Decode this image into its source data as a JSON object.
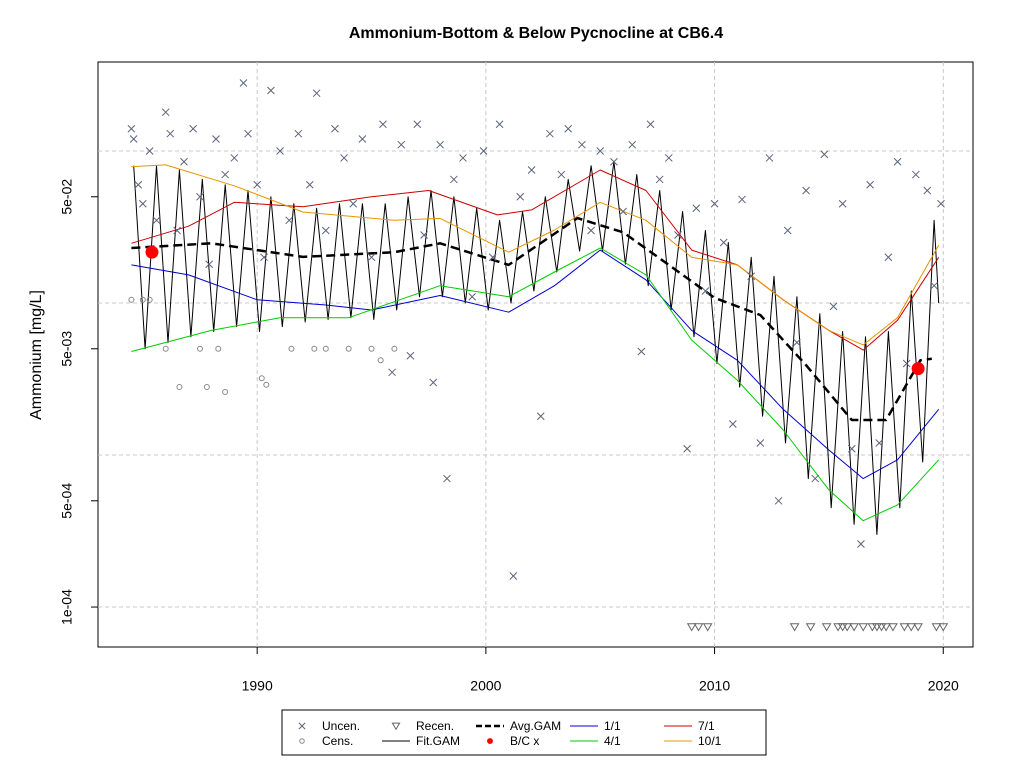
{
  "chart_data": {
    "type": "scatter",
    "title": "Ammonium-Bottom & Below Pycnocline at CB6.4",
    "y_label": "Ammonium [mg/L]",
    "xlim": [
      1983.04,
      2021.3
    ],
    "xticks": [
      1990,
      2000,
      2010,
      2020
    ],
    "ylim": [
      5.46e-05,
      0.385
    ],
    "log_y": true,
    "yticks": [
      {
        "value": 0.0001,
        "label": "1e-04"
      },
      {
        "value": 0.0005,
        "label": "5e-04"
      },
      {
        "value": 0.005,
        "label": "5e-03"
      },
      {
        "value": 0.05,
        "label": "5e-02"
      }
    ],
    "ygrid": [
      0.0001,
      0.001,
      0.01,
      0.1
    ],
    "grid": true,
    "legend": "bottom",
    "series": [
      {
        "name": "Uncen.",
        "color": "#5a6478",
        "marker": "x",
        "x": [
          1984.5,
          1984.6,
          1984.8,
          1985.0,
          1985.3,
          1985.6,
          1986.0,
          1986.2,
          1986.5,
          1986.8,
          1987.2,
          1987.5,
          1987.9,
          1988.2,
          1988.6,
          1989.0,
          1989.4,
          1989.6,
          1990.0,
          1990.3,
          1990.6,
          1991.0,
          1991.4,
          1991.8,
          1992.3,
          1992.6,
          1993.0,
          1993.4,
          1993.8,
          1994.2,
          1994.6,
          1995.0,
          1995.5,
          1995.9,
          1996.3,
          1996.7,
          1997.0,
          1997.3,
          1997.7,
          1998.0,
          1998.3,
          1998.6,
          1999.0,
          1999.4,
          1999.9,
          2000.3,
          2000.6,
          2001.2,
          2001.5,
          2002.0,
          2002.4,
          2002.8,
          2003.3,
          2003.6,
          2004.2,
          2004.6,
          2005.0,
          2005.6,
          2006.0,
          2006.4,
          2006.8,
          2007.2,
          2007.6,
          2008.0,
          2008.4,
          2008.8,
          2009.2,
          2009.6,
          2010.0,
          2010.4,
          2010.8,
          2011.2,
          2011.6,
          2012.0,
          2012.4,
          2012.8,
          2013.2,
          2013.6,
          2014.0,
          2014.4,
          2014.8,
          2015.2,
          2015.6,
          2016.0,
          2016.4,
          2016.8,
          2017.2,
          2017.6,
          2018.0,
          2018.4,
          2018.8,
          2019.3,
          2019.6,
          2019.9
        ],
        "values": [
          0.14,
          0.12,
          0.06,
          0.045,
          0.1,
          0.035,
          0.18,
          0.13,
          0.03,
          0.085,
          0.14,
          0.05,
          0.018,
          0.12,
          0.07,
          0.09,
          0.28,
          0.13,
          0.06,
          0.02,
          0.25,
          0.1,
          0.035,
          0.13,
          0.06,
          0.24,
          0.03,
          0.14,
          0.09,
          0.045,
          0.12,
          0.02,
          0.15,
          0.0035,
          0.11,
          0.0045,
          0.15,
          0.028,
          0.003,
          0.11,
          0.0007,
          0.065,
          0.09,
          0.011,
          0.1,
          0.02,
          0.15,
          0.00016,
          0.05,
          0.075,
          0.0018,
          0.13,
          0.07,
          0.14,
          0.11,
          0.03,
          0.1,
          0.085,
          0.04,
          0.11,
          0.0048,
          0.15,
          0.065,
          0.09,
          0.028,
          0.0011,
          0.042,
          0.012,
          0.045,
          0.025,
          0.0016,
          0.048,
          0.015,
          0.0012,
          0.09,
          0.0005,
          0.03,
          0.0055,
          0.055,
          0.0007,
          0.095,
          0.0095,
          0.045,
          0.0011,
          0.00026,
          0.06,
          0.0012,
          0.02,
          0.085,
          0.004,
          0.07,
          0.055,
          0.013,
          0.045
        ]
      },
      {
        "name": "Cens.",
        "color": "#888888",
        "marker": "circle",
        "x": [
          1984.5,
          1985.0,
          1985.3,
          1986.0,
          1986.6,
          1987.5,
          1987.8,
          1988.3,
          1988.6,
          1990.2,
          1990.4,
          1991.5,
          1992.5,
          1993.0,
          1994.0,
          1995.0,
          1995.4,
          1996.0
        ],
        "values": [
          0.0105,
          0.0105,
          0.0105,
          0.005,
          0.0028,
          0.005,
          0.0028,
          0.005,
          0.0026,
          0.0032,
          0.0029,
          0.005,
          0.005,
          0.005,
          0.005,
          0.005,
          0.0042,
          0.005
        ]
      },
      {
        "name": "Recen.",
        "color": "#666666",
        "marker": "triangle",
        "x": [
          2009.0,
          2009.3,
          2009.7,
          2013.5,
          2014.2,
          2014.9,
          2015.4,
          2015.6,
          2015.8,
          2016.1,
          2016.5,
          2016.9,
          2017.1,
          2017.3,
          2017.5,
          2017.8,
          2018.3,
          2018.6,
          2018.9,
          2019.7,
          2020.0
        ],
        "values": [
          7.4e-05,
          7.4e-05,
          7.4e-05,
          7.4e-05,
          7.4e-05,
          7.4e-05,
          7.4e-05,
          7.4e-05,
          7.4e-05,
          7.4e-05,
          7.4e-05,
          7.4e-05,
          7.4e-05,
          7.4e-05,
          7.4e-05,
          7.4e-05,
          7.4e-05,
          7.4e-05,
          7.4e-05,
          7.4e-05,
          7.4e-05
        ]
      },
      {
        "name": "Fit.GAM",
        "color": "#000000",
        "line": "solid",
        "width": 1,
        "x": [
          1984.6,
          1985.1,
          1985.6,
          1986.1,
          1986.6,
          1987.1,
          1987.6,
          1988.1,
          1988.6,
          1989.1,
          1989.6,
          1990.1,
          1990.6,
          1991.1,
          1991.6,
          1992.1,
          1992.6,
          1993.1,
          1993.6,
          1994.1,
          1994.6,
          1995.1,
          1995.6,
          1996.1,
          1996.6,
          1997.1,
          1997.6,
          1998.1,
          1998.6,
          1999.1,
          1999.6,
          2000.1,
          2000.6,
          2001.1,
          2001.6,
          2002.1,
          2002.6,
          2003.1,
          2003.6,
          2004.1,
          2004.6,
          2005.1,
          2005.6,
          2006.1,
          2006.6,
          2007.1,
          2007.6,
          2008.1,
          2008.6,
          2009.1,
          2009.6,
          2010.1,
          2010.6,
          2011.1,
          2011.6,
          2012.1,
          2012.6,
          2013.1,
          2013.6,
          2014.1,
          2014.6,
          2015.1,
          2015.6,
          2016.1,
          2016.6,
          2017.1,
          2017.6,
          2018.1,
          2018.6,
          2019.1,
          2019.6,
          2019.8
        ],
        "values": [
          0.08,
          0.005,
          0.08,
          0.0055,
          0.075,
          0.006,
          0.065,
          0.0065,
          0.06,
          0.007,
          0.055,
          0.0065,
          0.05,
          0.007,
          0.045,
          0.0075,
          0.042,
          0.0078,
          0.045,
          0.008,
          0.045,
          0.0078,
          0.045,
          0.009,
          0.05,
          0.011,
          0.055,
          0.011,
          0.05,
          0.01,
          0.042,
          0.009,
          0.035,
          0.01,
          0.04,
          0.012,
          0.05,
          0.016,
          0.065,
          0.022,
          0.08,
          0.022,
          0.085,
          0.018,
          0.07,
          0.013,
          0.055,
          0.009,
          0.04,
          0.006,
          0.03,
          0.004,
          0.025,
          0.0028,
          0.02,
          0.0018,
          0.015,
          0.0012,
          0.011,
          0.0007,
          0.0085,
          0.00045,
          0.0065,
          0.00035,
          0.006,
          0.0003,
          0.0065,
          0.00045,
          0.012,
          0.0009,
          0.035,
          0.01
        ]
      },
      {
        "name": "Avg.GAM",
        "color": "#000000",
        "line": "dashed",
        "width": 2.5,
        "x": [
          1984.5,
          1988,
          1992,
          1996,
          1998,
          2001,
          2004,
          2006,
          2008,
          2010,
          2012,
          2014,
          2016,
          2017.5,
          2019,
          2019.5
        ],
        "values": [
          0.023,
          0.0247,
          0.0201,
          0.0216,
          0.0247,
          0.0178,
          0.0362,
          0.0292,
          0.0178,
          0.0108,
          0.00834,
          0.0039,
          0.0017,
          0.0017,
          0.0042,
          0.0043
        ]
      },
      {
        "name": "B/C x",
        "color": "#ff0000",
        "marker": "dot",
        "x": [
          1985.4,
          2018.9
        ],
        "values": [
          0.0216,
          0.0037
        ]
      },
      {
        "name": "1/1",
        "color": "#0000cc",
        "line": "solid",
        "width": 1,
        "x": [
          1984.5,
          1987,
          1990,
          1993,
          1995,
          1998,
          2001,
          2003,
          2005,
          2007,
          2009,
          2011,
          2013,
          2015,
          2016.5,
          2018,
          2019.8
        ],
        "values": [
          0.0178,
          0.0153,
          0.0105,
          0.0097,
          0.009,
          0.0112,
          0.0087,
          0.013,
          0.0223,
          0.0142,
          0.0066,
          0.0042,
          0.002,
          0.00108,
          0.0007,
          0.00093,
          0.002
        ]
      },
      {
        "name": "4/1",
        "color": "#00cc00",
        "line": "solid",
        "width": 1,
        "x": [
          1984.5,
          1988,
          1991,
          1994,
          1998,
          2001,
          2003,
          2005,
          2007,
          2009,
          2011,
          2013,
          2015,
          2016.5,
          2018,
          2019.8
        ],
        "values": [
          0.0048,
          0.0066,
          0.008,
          0.008,
          0.013,
          0.011,
          0.016,
          0.023,
          0.0153,
          0.0057,
          0.0031,
          0.00146,
          0.00059,
          0.00037,
          0.00047,
          0.00093
        ]
      },
      {
        "name": "7/1",
        "color": "#cc0000",
        "line": "solid",
        "width": 1,
        "x": [
          1984.5,
          1987,
          1989,
          1992,
          1995,
          1997.5,
          2000.5,
          2002,
          2005,
          2007,
          2009,
          2011,
          2013,
          2015,
          2016.5,
          2018,
          2019.8
        ],
        "values": [
          0.0247,
          0.032,
          0.046,
          0.043,
          0.05,
          0.055,
          0.038,
          0.041,
          0.075,
          0.055,
          0.0223,
          0.0178,
          0.0105,
          0.0066,
          0.0049,
          0.0077,
          0.02
        ]
      },
      {
        "name": "10/1",
        "color": "#e69500",
        "line": "solid",
        "width": 1,
        "x": [
          1984.5,
          1986,
          1989,
          1992,
          1996,
          1998,
          2001,
          2003,
          2005,
          2007,
          2009,
          2011,
          2013,
          2015,
          2016.5,
          2018,
          2019.8
        ],
        "values": [
          0.079,
          0.081,
          0.059,
          0.0397,
          0.035,
          0.036,
          0.0216,
          0.0302,
          0.046,
          0.035,
          0.02,
          0.0178,
          0.0105,
          0.0066,
          0.0053,
          0.008,
          0.024
        ]
      }
    ]
  }
}
